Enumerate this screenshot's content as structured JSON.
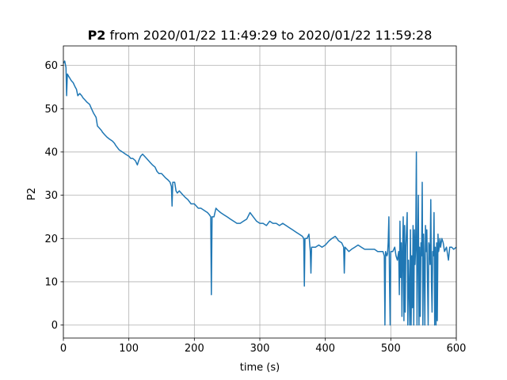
{
  "chart_data": {
    "type": "line",
    "title_bold": "P2",
    "title_rest": " from 2020/01/22 11:49:29 to 2020/01/22 11:59:28",
    "xlabel": "time (s)",
    "ylabel": "P2",
    "xlim": [
      0,
      600
    ],
    "ylim": [
      -3,
      64.5
    ],
    "xticks": [
      0,
      100,
      200,
      300,
      400,
      500,
      600
    ],
    "yticks": [
      0,
      10,
      20,
      30,
      40,
      50,
      60
    ],
    "grid": true,
    "series": [
      {
        "color": "#1f77b4",
        "points": [
          [
            0,
            60.5
          ],
          [
            2,
            61
          ],
          [
            4,
            59.5
          ],
          [
            5,
            53
          ],
          [
            6,
            58
          ],
          [
            8,
            57.5
          ],
          [
            10,
            57
          ],
          [
            12,
            56.5
          ],
          [
            15,
            56
          ],
          [
            18,
            55
          ],
          [
            20,
            54.5
          ],
          [
            22,
            53
          ],
          [
            25,
            53.5
          ],
          [
            28,
            53
          ],
          [
            30,
            52.5
          ],
          [
            33,
            52
          ],
          [
            36,
            51.5
          ],
          [
            40,
            51
          ],
          [
            43,
            50
          ],
          [
            46,
            49
          ],
          [
            50,
            48
          ],
          [
            52,
            46
          ],
          [
            55,
            45.5
          ],
          [
            58,
            45
          ],
          [
            60,
            44.5
          ],
          [
            63,
            44
          ],
          [
            66,
            43.5
          ],
          [
            70,
            43
          ],
          [
            75,
            42.5
          ],
          [
            78,
            42
          ],
          [
            80,
            41.5
          ],
          [
            85,
            40.5
          ],
          [
            90,
            40
          ],
          [
            95,
            39.5
          ],
          [
            100,
            39
          ],
          [
            103,
            38.5
          ],
          [
            106,
            38.5
          ],
          [
            110,
            38
          ],
          [
            113,
            37
          ],
          [
            115,
            38
          ],
          [
            118,
            39
          ],
          [
            121,
            39.5
          ],
          [
            124,
            39
          ],
          [
            127,
            38.5
          ],
          [
            130,
            38
          ],
          [
            133,
            37.5
          ],
          [
            136,
            37
          ],
          [
            140,
            36.5
          ],
          [
            143,
            35.5
          ],
          [
            146,
            35
          ],
          [
            150,
            35
          ],
          [
            153,
            34.5
          ],
          [
            156,
            34
          ],
          [
            160,
            33.5
          ],
          [
            163,
            33
          ],
          [
            165,
            32
          ],
          [
            166,
            27.5
          ],
          [
            167,
            33
          ],
          [
            170,
            33
          ],
          [
            172,
            31
          ],
          [
            174,
            30.5
          ],
          [
            177,
            31
          ],
          [
            180,
            30.5
          ],
          [
            183,
            30
          ],
          [
            186,
            29.5
          ],
          [
            190,
            29
          ],
          [
            195,
            28
          ],
          [
            200,
            28
          ],
          [
            203,
            27.5
          ],
          [
            206,
            27
          ],
          [
            210,
            27
          ],
          [
            215,
            26.5
          ],
          [
            220,
            26
          ],
          [
            223,
            25.5
          ],
          [
            225,
            25
          ],
          [
            226,
            7
          ],
          [
            227,
            25
          ],
          [
            230,
            25
          ],
          [
            233,
            27
          ],
          [
            236,
            26.5
          ],
          [
            240,
            26
          ],
          [
            245,
            25.5
          ],
          [
            250,
            25
          ],
          [
            255,
            24.5
          ],
          [
            260,
            24
          ],
          [
            265,
            23.5
          ],
          [
            270,
            23.5
          ],
          [
            275,
            24
          ],
          [
            280,
            24.5
          ],
          [
            285,
            26
          ],
          [
            290,
            25
          ],
          [
            295,
            24
          ],
          [
            300,
            23.5
          ],
          [
            305,
            23.5
          ],
          [
            310,
            23
          ],
          [
            315,
            24
          ],
          [
            320,
            23.5
          ],
          [
            325,
            23.5
          ],
          [
            330,
            23
          ],
          [
            335,
            23.5
          ],
          [
            340,
            23
          ],
          [
            345,
            22.5
          ],
          [
            350,
            22
          ],
          [
            355,
            21.5
          ],
          [
            360,
            21
          ],
          [
            365,
            20.5
          ],
          [
            367,
            20
          ],
          [
            368,
            9
          ],
          [
            369,
            20
          ],
          [
            372,
            20
          ],
          [
            375,
            21
          ],
          [
            377,
            17
          ],
          [
            378,
            12
          ],
          [
            379,
            18
          ],
          [
            381,
            18
          ],
          [
            385,
            18
          ],
          [
            390,
            18.5
          ],
          [
            395,
            18
          ],
          [
            400,
            18.5
          ],
          [
            403,
            19
          ],
          [
            406,
            19.5
          ],
          [
            410,
            20
          ],
          [
            415,
            20.5
          ],
          [
            418,
            20
          ],
          [
            420,
            19.5
          ],
          [
            425,
            19
          ],
          [
            428,
            18
          ],
          [
            429,
            12
          ],
          [
            430,
            18
          ],
          [
            433,
            17.5
          ],
          [
            436,
            17
          ],
          [
            440,
            17.5
          ],
          [
            445,
            18
          ],
          [
            450,
            18.5
          ],
          [
            455,
            18
          ],
          [
            460,
            17.5
          ],
          [
            465,
            17.5
          ],
          [
            470,
            17.5
          ],
          [
            475,
            17.5
          ],
          [
            480,
            17
          ],
          [
            485,
            17
          ],
          [
            488,
            17
          ],
          [
            490,
            16
          ],
          [
            491,
            0
          ],
          [
            492,
            17
          ],
          [
            494,
            16
          ],
          [
            495,
            16.5
          ],
          [
            496,
            19
          ],
          [
            497,
            25
          ],
          [
            498,
            10
          ],
          [
            499,
            0
          ],
          [
            500,
            17
          ],
          [
            503,
            17
          ],
          [
            506,
            18
          ],
          [
            508,
            16
          ],
          [
            510,
            15
          ],
          [
            512,
            17
          ],
          [
            513,
            7
          ],
          [
            514,
            24
          ],
          [
            515,
            11
          ],
          [
            516,
            19
          ],
          [
            517,
            2
          ],
          [
            518,
            17
          ],
          [
            519,
            25
          ],
          [
            520,
            1
          ],
          [
            521,
            23
          ],
          [
            522,
            3
          ],
          [
            523,
            18
          ],
          [
            524,
            22
          ],
          [
            525,
            26
          ],
          [
            526,
            0
          ],
          [
            527,
            15
          ],
          [
            528,
            8
          ],
          [
            529,
            0
          ],
          [
            530,
            22
          ],
          [
            531,
            0
          ],
          [
            532,
            16
          ],
          [
            533,
            4
          ],
          [
            534,
            23
          ],
          [
            535,
            0
          ],
          [
            536,
            22
          ],
          [
            537,
            14
          ],
          [
            538,
            18
          ],
          [
            539,
            40
          ],
          [
            540,
            0
          ],
          [
            541,
            15
          ],
          [
            542,
            30
          ],
          [
            543,
            0
          ],
          [
            544,
            18
          ],
          [
            545,
            2
          ],
          [
            546,
            19
          ],
          [
            547,
            16
          ],
          [
            548,
            33
          ],
          [
            549,
            0
          ],
          [
            550,
            21
          ],
          [
            551,
            14
          ],
          [
            552,
            0
          ],
          [
            553,
            23
          ],
          [
            554,
            17
          ],
          [
            555,
            22
          ],
          [
            556,
            11
          ],
          [
            557,
            0
          ],
          [
            558,
            19
          ],
          [
            559,
            18
          ],
          [
            560,
            14
          ],
          [
            561,
            29
          ],
          [
            562,
            10
          ],
          [
            563,
            3
          ],
          [
            564,
            17
          ],
          [
            565,
            16
          ],
          [
            566,
            26
          ],
          [
            567,
            0
          ],
          [
            568,
            18
          ],
          [
            569,
            0
          ],
          [
            570,
            19
          ],
          [
            571,
            1
          ],
          [
            572,
            21
          ],
          [
            573,
            17
          ],
          [
            574,
            18
          ],
          [
            575,
            20
          ],
          [
            576,
            18
          ],
          [
            578,
            20
          ],
          [
            580,
            19
          ],
          [
            582,
            17
          ],
          [
            585,
            18
          ],
          [
            588,
            15
          ],
          [
            590,
            18
          ],
          [
            593,
            18
          ],
          [
            596,
            17.5
          ],
          [
            600,
            18
          ]
        ]
      }
    ]
  }
}
